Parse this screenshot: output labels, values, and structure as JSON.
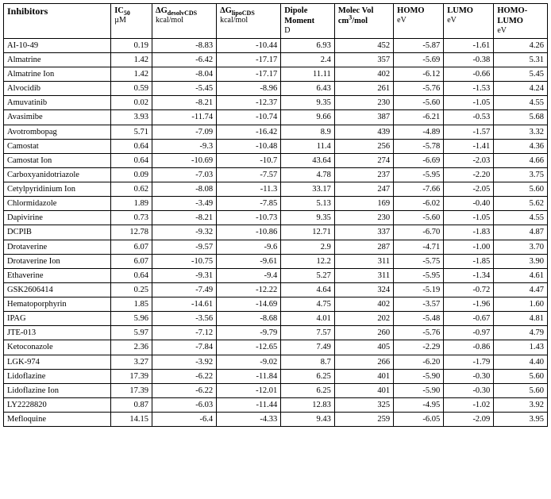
{
  "headers": {
    "inhibitors": "Inhibitors",
    "ic50_html": "IC<sub>50</sub>",
    "ic50_unit": "µM",
    "dg_desolv_html": "ΔG<sub>desolvCDS</sub>",
    "dg_unit": "kcal/mol",
    "dg_lipo_html": "ΔG<sub>lipoCDS</sub>",
    "dipole": "Dipole Moment",
    "dipole_unit": "D",
    "molvol_html": "Molec Vol cm<sup>3</sup>/mol",
    "homo": "HOMO",
    "ev": "eV",
    "lumo": "LUMO",
    "homolumo": "HOMO-LUMO"
  },
  "rows": [
    {
      "name": "AI-10-49",
      "ic50": "0.19",
      "dg_desolv": "-8.83",
      "dg_lipo": "-10.44",
      "dipole": "6.93",
      "molvol": "452",
      "homo": "-5.87",
      "lumo": "-1.61",
      "gap": "4.26"
    },
    {
      "name": "Almatrine",
      "ic50": "1.42",
      "dg_desolv": "-6.42",
      "dg_lipo": "-17.17",
      "dipole": "2.4",
      "molvol": "357",
      "homo": "-5.69",
      "lumo": "-0.38",
      "gap": "5.31"
    },
    {
      "name": "Almatrine Ion",
      "ic50": "1.42",
      "dg_desolv": "-8.04",
      "dg_lipo": "-17.17",
      "dipole": "11.11",
      "molvol": "402",
      "homo": "-6.12",
      "lumo": "-0.66",
      "gap": "5.45"
    },
    {
      "name": "Alvocidib",
      "ic50": "0.59",
      "dg_desolv": "-5.45",
      "dg_lipo": "-8.96",
      "dipole": "6.43",
      "molvol": "261",
      "homo": "-5.76",
      "lumo": "-1.53",
      "gap": "4.24"
    },
    {
      "name": "Amuvatinib",
      "ic50": "0.02",
      "dg_desolv": "-8.21",
      "dg_lipo": "-12.37",
      "dipole": "9.35",
      "molvol": "230",
      "homo": "-5.60",
      "lumo": "-1.05",
      "gap": "4.55"
    },
    {
      "name": "Avasimibe",
      "ic50": "3.93",
      "dg_desolv": "-11.74",
      "dg_lipo": "-10.74",
      "dipole": "9.66",
      "molvol": "387",
      "homo": "-6.21",
      "lumo": "-0.53",
      "gap": "5.68"
    },
    {
      "name": "Avotrombopag",
      "ic50": "5.71",
      "dg_desolv": "-7.09",
      "dg_lipo": "-16.42",
      "dipole": "8.9",
      "molvol": "439",
      "homo": "-4.89",
      "lumo": "-1.57",
      "gap": "3.32"
    },
    {
      "name": "Camostat",
      "ic50": "0.64",
      "dg_desolv": "-9.3",
      "dg_lipo": "-10.48",
      "dipole": "11.4",
      "molvol": "256",
      "homo": "-5.78",
      "lumo": "-1.41",
      "gap": "4.36"
    },
    {
      "name": "Camostat Ion",
      "ic50": "0.64",
      "dg_desolv": "-10.69",
      "dg_lipo": "-10.7",
      "dipole": "43.64",
      "molvol": "274",
      "homo": "-6.69",
      "lumo": "-2.03",
      "gap": "4.66"
    },
    {
      "name": "Carboxyanidotriazole",
      "ic50": "0.09",
      "dg_desolv": "-7.03",
      "dg_lipo": "-7.57",
      "dipole": "4.78",
      "molvol": "237",
      "homo": "-5.95",
      "lumo": "-2.20",
      "gap": "3.75"
    },
    {
      "name": "Cetylpyridinium Ion",
      "ic50": "0.62",
      "dg_desolv": "-8.08",
      "dg_lipo": "-11.3",
      "dipole": "33.17",
      "molvol": "247",
      "homo": "-7.66",
      "lumo": "-2.05",
      "gap": "5.60"
    },
    {
      "name": "Chlormidazole",
      "ic50": "1.89",
      "dg_desolv": "-3.49",
      "dg_lipo": "-7.85",
      "dipole": "5.13",
      "molvol": "169",
      "homo": "-6.02",
      "lumo": "-0.40",
      "gap": "5.62"
    },
    {
      "name": "Dapivirine",
      "ic50": "0.73",
      "dg_desolv": "-8.21",
      "dg_lipo": "-10.73",
      "dipole": "9.35",
      "molvol": "230",
      "homo": "-5.60",
      "lumo": "-1.05",
      "gap": "4.55"
    },
    {
      "name": "DCPIB",
      "ic50": "12.78",
      "dg_desolv": "-9.32",
      "dg_lipo": "-10.86",
      "dipole": "12.71",
      "molvol": "337",
      "homo": "-6.70",
      "lumo": "-1.83",
      "gap": "4.87"
    },
    {
      "name": "Drotaverine",
      "ic50": "6.07",
      "dg_desolv": "-9.57",
      "dg_lipo": "-9.6",
      "dipole": "2.9",
      "molvol": "287",
      "homo": "-4.71",
      "lumo": "-1.00",
      "gap": "3.70"
    },
    {
      "name": "Drotaverine Ion",
      "ic50": "6.07",
      "dg_desolv": "-10.75",
      "dg_lipo": "-9.61",
      "dipole": "12.2",
      "molvol": "311",
      "homo": "-5.75",
      "lumo": "-1.85",
      "gap": "3.90"
    },
    {
      "name": "Ethaverine",
      "ic50": "0.64",
      "dg_desolv": "-9.31",
      "dg_lipo": "-9.4",
      "dipole": "5.27",
      "molvol": "311",
      "homo": "-5.95",
      "lumo": "-1.34",
      "gap": "4.61"
    },
    {
      "name": "GSK2606414",
      "ic50": "0.25",
      "dg_desolv": "-7.49",
      "dg_lipo": "-12.22",
      "dipole": "4.64",
      "molvol": "324",
      "homo": "-5.19",
      "lumo": "-0.72",
      "gap": "4.47"
    },
    {
      "name": "Hematoporphyrin",
      "ic50": "1.85",
      "dg_desolv": "-14.61",
      "dg_lipo": "-14.69",
      "dipole": "4.75",
      "molvol": "402",
      "homo": "-3.57",
      "lumo": "-1.96",
      "gap": "1.60"
    },
    {
      "name": "IPAG",
      "ic50": "5.96",
      "dg_desolv": "-3.56",
      "dg_lipo": "-8.68",
      "dipole": "4.01",
      "molvol": "202",
      "homo": "-5.48",
      "lumo": "-0.67",
      "gap": "4.81"
    },
    {
      "name": "JTE-013",
      "ic50": "5.97",
      "dg_desolv": "-7.12",
      "dg_lipo": "-9.79",
      "dipole": "7.57",
      "molvol": "260",
      "homo": "-5.76",
      "lumo": "-0.97",
      "gap": "4.79"
    },
    {
      "name": "Ketoconazole",
      "ic50": "2.36",
      "dg_desolv": "-7.84",
      "dg_lipo": "-12.65",
      "dipole": "7.49",
      "molvol": "405",
      "homo": "-2.29",
      "lumo": "-0.86",
      "gap": "1.43"
    },
    {
      "name": "LGK-974",
      "ic50": "3.27",
      "dg_desolv": "-3.92",
      "dg_lipo": "-9.02",
      "dipole": "8.7",
      "molvol": "266",
      "homo": "-6.20",
      "lumo": "-1.79",
      "gap": "4.40"
    },
    {
      "name": "Lidoflazine",
      "ic50": "17.39",
      "dg_desolv": "-6.22",
      "dg_lipo": "-11.84",
      "dipole": "6.25",
      "molvol": "401",
      "homo": "-5.90",
      "lumo": "-0.30",
      "gap": "5.60"
    },
    {
      "name": "Lidoflazine Ion",
      "ic50": "17.39",
      "dg_desolv": "-6.22",
      "dg_lipo": "-12.01",
      "dipole": "6.25",
      "molvol": "401",
      "homo": "-5.90",
      "lumo": "-0.30",
      "gap": "5.60"
    },
    {
      "name": "LY2228820",
      "ic50": "0.87",
      "dg_desolv": "-6.03",
      "dg_lipo": "-11.44",
      "dipole": "12.83",
      "molvol": "325",
      "homo": "-4.95",
      "lumo": "-1.02",
      "gap": "3.92"
    },
    {
      "name": "Mefloquine",
      "ic50": "14.15",
      "dg_desolv": "-6.4",
      "dg_lipo": "-4.33",
      "dipole": "9.43",
      "molvol": "259",
      "homo": "-6.05",
      "lumo": "-2.09",
      "gap": "3.95"
    }
  ]
}
